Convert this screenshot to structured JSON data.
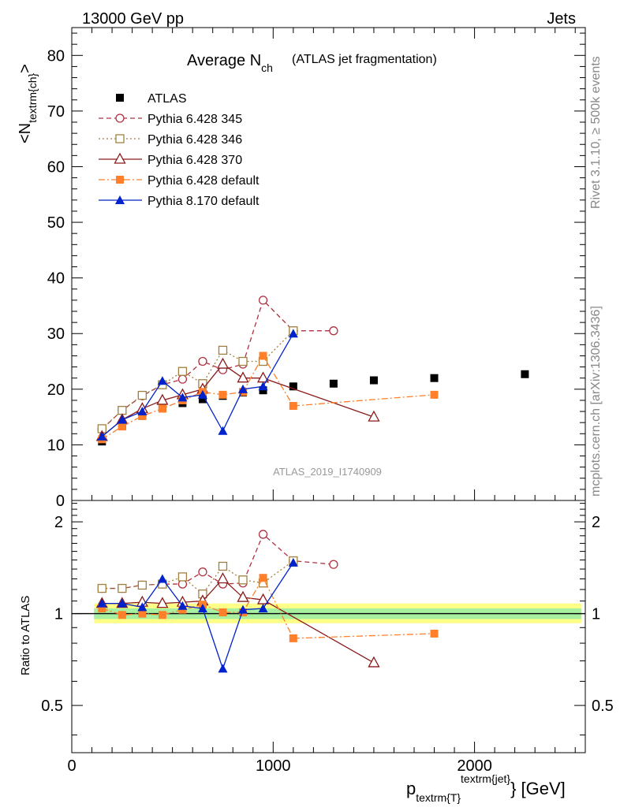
{
  "header": {
    "left": "13000 GeV pp",
    "right": "Jets",
    "side_top": "Rivet 3.1.10, ≥ 500k events",
    "side_bottom": "mcplots.cern.ch [arXiv:1306.3436]",
    "watermark": "ATLAS_2019_I1740909"
  },
  "chart_data": {
    "type": "scatter",
    "title_main": "Average N",
    "title_sub": "ch",
    "title_note": "(ATLAS jet fragmentation)",
    "ylabel": "<N",
    "ylabel_sub": "textrm{ch}",
    "ylabel_end": ">",
    "xlabel": "p",
    "xlabel_sub": "textrm{T}",
    "xlabel_sup": "textrm{jet}",
    "xlabel_end": "} [GeV]",
    "ratio_ylabel": "Ratio to ATLAS",
    "xlim": [
      0,
      2550
    ],
    "ylim": [
      0,
      85
    ],
    "ratio_ylim": [
      0.35,
      2.35
    ],
    "x_ticks": [
      0,
      1000,
      2000
    ],
    "y_ticks": [
      0,
      10,
      20,
      30,
      40,
      50,
      60,
      70,
      80
    ],
    "ratio_ticks": [
      0.5,
      1,
      2
    ],
    "ratio_tick_labels": [
      "0.5",
      "1",
      "2"
    ],
    "legend_position": "top-left",
    "series": [
      {
        "name": "ATLAS",
        "color": "#000000",
        "marker": "square-filled",
        "line": "none",
        "x": [
          150,
          250,
          350,
          450,
          550,
          650,
          750,
          850,
          950,
          1100,
          1300,
          1500,
          1800,
          2250
        ],
        "y": [
          10.6,
          13.4,
          15.2,
          16.6,
          17.5,
          18.2,
          18.8,
          19.4,
          19.8,
          20.5,
          21.0,
          21.6,
          22.0,
          22.7
        ],
        "ratio": [
          1,
          1,
          1,
          1,
          1,
          1,
          1,
          1,
          1,
          1,
          1,
          1,
          1,
          1
        ]
      },
      {
        "name": "Pythia 6.428 345",
        "color": "#b03040",
        "marker": "circle-open",
        "line": "dashed",
        "x": [
          150,
          250,
          350,
          450,
          550,
          650,
          750,
          850,
          950,
          1100,
          1300
        ],
        "y": [
          12.8,
          16.2,
          18.8,
          20.8,
          21.8,
          25.0,
          23.5,
          24.5,
          36.0,
          30.5,
          30.5
        ],
        "ratio": [
          1.21,
          1.21,
          1.24,
          1.25,
          1.25,
          1.37,
          1.25,
          1.26,
          1.82,
          1.49,
          1.45
        ]
      },
      {
        "name": "Pythia 6.428 346",
        "color": "#a08040",
        "marker": "square-open",
        "line": "dotted",
        "x": [
          150,
          250,
          350,
          450,
          550,
          650,
          750,
          850,
          950,
          1100
        ],
        "y": [
          12.9,
          16.2,
          18.9,
          20.8,
          23.2,
          21.0,
          27.0,
          25.0,
          25.0,
          30.5
        ],
        "ratio": [
          1.21,
          1.21,
          1.24,
          1.25,
          1.32,
          1.16,
          1.43,
          1.29,
          1.26,
          1.49
        ]
      },
      {
        "name": "Pythia 6.428 370",
        "color": "#8b1a1a",
        "marker": "triangle-open",
        "line": "solid",
        "x": [
          150,
          250,
          350,
          450,
          550,
          650,
          750,
          850,
          950,
          1500
        ],
        "y": [
          11.5,
          14.5,
          16.5,
          18.0,
          19.0,
          20.0,
          24.5,
          22.0,
          22.0,
          15.0
        ],
        "ratio": [
          1.08,
          1.08,
          1.09,
          1.08,
          1.09,
          1.1,
          1.3,
          1.13,
          1.11,
          0.69
        ]
      },
      {
        "name": "Pythia 6.428 default",
        "color": "#ff7f2a",
        "marker": "square-filled",
        "line": "dashdot",
        "x": [
          150,
          250,
          350,
          450,
          550,
          650,
          750,
          850,
          950,
          1100,
          1800
        ],
        "y": [
          11.0,
          13.3,
          15.2,
          16.5,
          18.0,
          19.5,
          19.0,
          19.5,
          26.0,
          17.0,
          19.0
        ],
        "ratio": [
          1.04,
          0.99,
          1.0,
          0.99,
          1.03,
          1.07,
          1.01,
          1.01,
          1.31,
          0.83,
          0.86
        ]
      },
      {
        "name": "Pythia 8.170 default",
        "color": "#0022cc",
        "marker": "triangle-filled",
        "line": "solid",
        "x": [
          150,
          250,
          350,
          450,
          550,
          650,
          750,
          850,
          950,
          1100
        ],
        "y": [
          11.5,
          14.5,
          16.0,
          21.5,
          18.5,
          19.0,
          12.5,
          20.0,
          20.5,
          30.0
        ],
        "ratio": [
          1.08,
          1.08,
          1.05,
          1.3,
          1.06,
          1.04,
          0.66,
          1.03,
          1.04,
          1.47
        ]
      }
    ]
  }
}
